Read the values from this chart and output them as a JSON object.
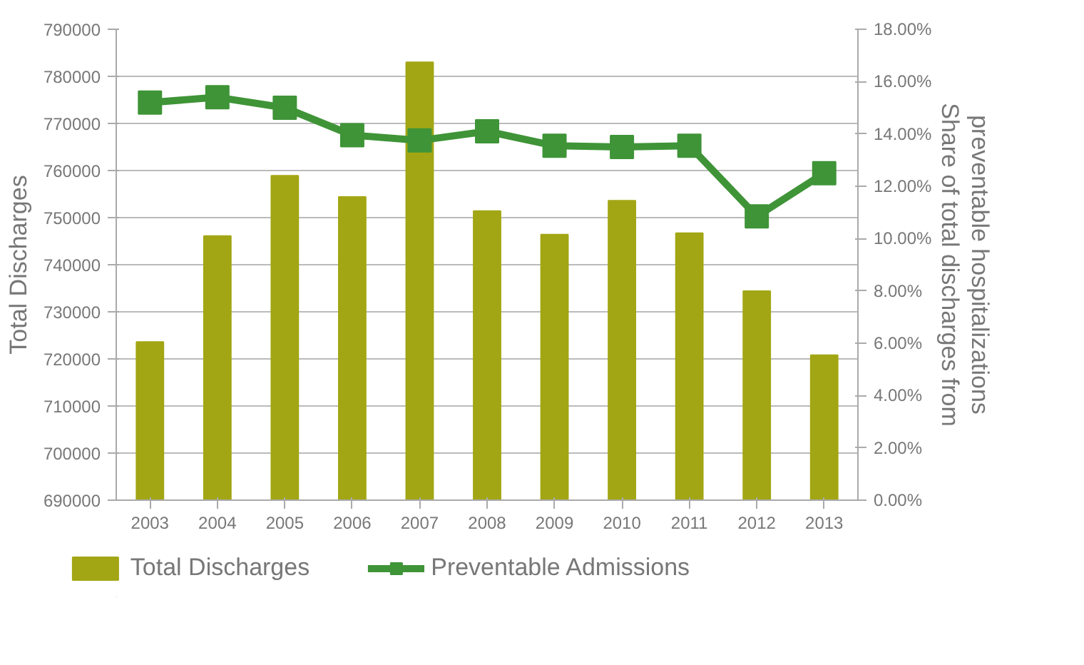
{
  "chart_data": {
    "type": "bar",
    "categories": [
      "2003",
      "2004",
      "2005",
      "2006",
      "2007",
      "2008",
      "2009",
      "2010",
      "2011",
      "2012",
      "2013"
    ],
    "ylabel": "Total Discharges",
    "y2label": "Share of total discharges from\npreventable hospitalizations",
    "ylim": [
      690000,
      790000
    ],
    "yticks": [
      690000,
      700000,
      710000,
      720000,
      730000,
      740000,
      750000,
      760000,
      770000,
      780000,
      790000
    ],
    "y2lim": [
      0,
      18
    ],
    "y2ticks": [
      {
        "value": 0,
        "label": "0.00%"
      },
      {
        "value": 2,
        "label": "2.00%"
      },
      {
        "value": 4,
        "label": "4.00%"
      },
      {
        "value": 6,
        "label": "6.00%"
      },
      {
        "value": 8,
        "label": "8.00%"
      },
      {
        "value": 10,
        "label": "10.00%"
      },
      {
        "value": 12,
        "label": "12.00%"
      },
      {
        "value": 14,
        "label": "14.00%"
      },
      {
        "value": 16,
        "label": "16.00%"
      },
      {
        "value": 18,
        "label": "18.00%"
      }
    ],
    "grid": "y",
    "legend": "bottom",
    "series": [
      {
        "name": "Total Discharges",
        "type": "bar",
        "color": "#a2a614",
        "values": [
          723600,
          746100,
          758900,
          754400,
          783000,
          751400,
          746400,
          753600,
          746700,
          734400,
          720800
        ]
      },
      {
        "name": "Preventable Admissions",
        "type": "line",
        "axis": "y2",
        "marker": "square",
        "color": "#3f9437",
        "values": [
          15.2,
          15.4,
          15.0,
          13.95,
          13.75,
          14.1,
          13.55,
          13.5,
          13.55,
          10.85,
          12.5
        ]
      }
    ]
  }
}
